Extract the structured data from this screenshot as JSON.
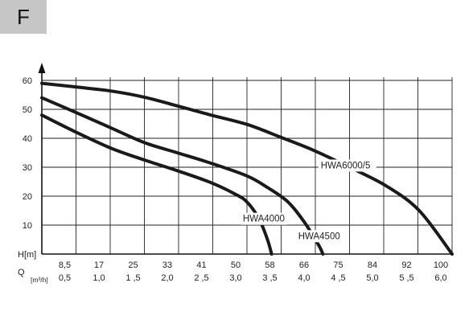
{
  "badge": {
    "letter": "F"
  },
  "chart_data": {
    "type": "line",
    "title": "",
    "ylabel": "H[m]",
    "xlabel_primary": "Q",
    "xlabel_secondary": "[m³/h]",
    "ylim": [
      0,
      60
    ],
    "xlim": [
      0,
      100
    ],
    "y_ticks": [
      10,
      20,
      30,
      40,
      50,
      60
    ],
    "x_ticks": [
      "8,5",
      "17",
      "25",
      "33",
      "41",
      "50",
      "58",
      "66",
      "75",
      "84",
      "92",
      "100"
    ],
    "x_ticks_secondary": [
      "0,5",
      "1,0",
      "1 ,5",
      "2,0",
      "2 ,5",
      "3,0",
      "3 ,5",
      "4,0",
      "4 ,5",
      "5,0",
      "5 ,5",
      "6,0"
    ],
    "grid": true,
    "series": [
      {
        "name": "HWA6000/5",
        "points": [
          [
            0,
            59
          ],
          [
            8.5,
            57.7
          ],
          [
            17,
            56.3
          ],
          [
            25,
            54.2
          ],
          [
            33,
            51.2
          ],
          [
            41,
            48.1
          ],
          [
            50,
            44.8
          ],
          [
            58,
            40.5
          ],
          [
            66,
            36
          ],
          [
            75,
            30
          ],
          [
            84,
            23.5
          ],
          [
            92,
            15
          ],
          [
            100,
            0
          ]
        ]
      },
      {
        "name": "HWA4500",
        "points": [
          [
            0,
            54
          ],
          [
            8.5,
            48.8
          ],
          [
            17,
            43.5
          ],
          [
            25,
            38.5
          ],
          [
            33,
            35
          ],
          [
            41,
            31.5
          ],
          [
            50,
            27
          ],
          [
            55,
            23
          ],
          [
            60,
            18
          ],
          [
            64,
            11
          ],
          [
            67.5,
            3
          ],
          [
            68.5,
            0
          ]
        ]
      },
      {
        "name": "HWA4000",
        "points": [
          [
            0,
            48
          ],
          [
            8.5,
            42
          ],
          [
            17,
            36.5
          ],
          [
            25,
            32.5
          ],
          [
            33,
            28.8
          ],
          [
            41,
            24.8
          ],
          [
            47,
            20.8
          ],
          [
            50,
            18
          ],
          [
            53,
            12
          ],
          [
            55,
            5
          ],
          [
            56,
            0
          ]
        ]
      }
    ],
    "line_color": "#1a1a1a"
  }
}
